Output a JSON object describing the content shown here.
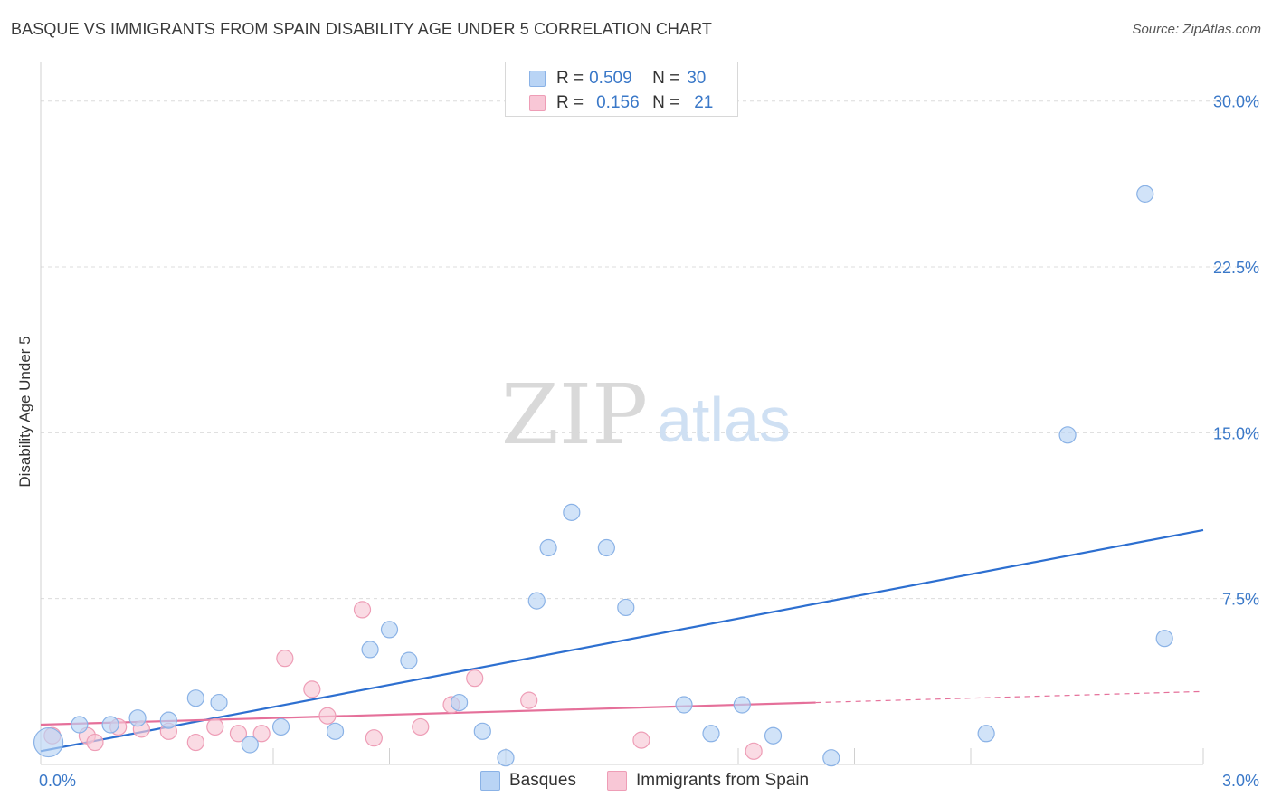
{
  "title": "BASQUE VS IMMIGRANTS FROM SPAIN DISABILITY AGE UNDER 5 CORRELATION CHART",
  "source": "Source: ZipAtlas.com",
  "watermark": {
    "zip": "ZIP",
    "atlas": "atlas"
  },
  "legend": {
    "r_label": "R =",
    "n_label": "N =",
    "rows": [
      {
        "r": "0.509",
        "n": "30"
      },
      {
        "r": "0.156",
        "n": "21"
      }
    ]
  },
  "colors": {
    "basques_fill": "#b9d4f5",
    "basques_stroke": "#8ab2e6",
    "basques_line": "#2d6fd0",
    "spain_fill": "#f8c7d6",
    "spain_stroke": "#ee9db6",
    "spain_line": "#e5709a",
    "tick_text": "#3a78c8",
    "grid": "#dcdcdc"
  },
  "chart_data": {
    "type": "scatter",
    "title": "BASQUE VS IMMIGRANTS FROM SPAIN DISABILITY AGE UNDER 5 CORRELATION CHART",
    "xlabel": "",
    "ylabel": "Disability Age Under 5",
    "xlim": [
      0,
      3.0
    ],
    "ylim": [
      0,
      30.0
    ],
    "x_tick_labels": [
      "0.0%",
      "3.0%"
    ],
    "y_ticks": [
      7.5,
      15.0,
      22.5,
      30.0
    ],
    "y_tick_labels": [
      "7.5%",
      "15.0%",
      "22.5%",
      "30.0%"
    ],
    "grid": true,
    "legend_position": "top-center",
    "series": [
      {
        "name": "Basques",
        "points": [
          [
            0.02,
            1.0
          ],
          [
            0.1,
            1.8
          ],
          [
            0.18,
            1.8
          ],
          [
            0.25,
            2.1
          ],
          [
            0.33,
            2.0
          ],
          [
            0.4,
            3.0
          ],
          [
            0.46,
            2.8
          ],
          [
            0.54,
            0.9
          ],
          [
            0.62,
            1.7
          ],
          [
            0.76,
            1.5
          ],
          [
            0.85,
            5.2
          ],
          [
            0.9,
            6.1
          ],
          [
            0.95,
            4.7
          ],
          [
            1.08,
            2.8
          ],
          [
            1.14,
            1.5
          ],
          [
            1.2,
            0.3
          ],
          [
            1.28,
            7.4
          ],
          [
            1.31,
            9.8
          ],
          [
            1.37,
            11.4
          ],
          [
            1.46,
            9.8
          ],
          [
            1.51,
            7.1
          ],
          [
            1.66,
            2.7
          ],
          [
            1.73,
            1.4
          ],
          [
            1.81,
            2.7
          ],
          [
            1.89,
            1.3
          ],
          [
            2.04,
            0.3
          ],
          [
            2.44,
            1.4
          ],
          [
            2.65,
            14.9
          ],
          [
            2.85,
            25.8
          ],
          [
            2.9,
            5.7
          ]
        ],
        "marker_sizes": [
          16,
          9,
          9,
          9,
          9,
          9,
          9,
          9,
          9,
          9,
          9,
          9,
          9,
          9,
          9,
          9,
          9,
          9,
          9,
          9,
          9,
          9,
          9,
          9,
          9,
          9,
          9,
          9,
          9,
          9
        ],
        "trend": {
          "x": [
            0.0,
            3.0
          ],
          "y": [
            0.6,
            10.6
          ]
        }
      },
      {
        "name": "Immigrants from Spain",
        "points": [
          [
            0.03,
            1.3
          ],
          [
            0.12,
            1.3
          ],
          [
            0.14,
            1.0
          ],
          [
            0.2,
            1.7
          ],
          [
            0.26,
            1.6
          ],
          [
            0.33,
            1.5
          ],
          [
            0.4,
            1.0
          ],
          [
            0.45,
            1.7
          ],
          [
            0.51,
            1.4
          ],
          [
            0.57,
            1.4
          ],
          [
            0.63,
            4.8
          ],
          [
            0.7,
            3.4
          ],
          [
            0.74,
            2.2
          ],
          [
            0.83,
            7.0
          ],
          [
            0.86,
            1.2
          ],
          [
            0.98,
            1.7
          ],
          [
            1.06,
            2.7
          ],
          [
            1.12,
            3.9
          ],
          [
            1.26,
            2.9
          ],
          [
            1.55,
            1.1
          ],
          [
            1.84,
            0.6
          ]
        ],
        "marker_sizes": [
          9,
          9,
          9,
          9,
          9,
          9,
          9,
          9,
          9,
          9,
          9,
          9,
          9,
          9,
          9,
          9,
          9,
          9,
          9,
          9,
          9
        ],
        "trend": {
          "x": [
            0.0,
            2.0
          ],
          "y": [
            1.8,
            2.8
          ]
        },
        "trend_extension": {
          "x": [
            2.0,
            3.0
          ],
          "y": [
            2.8,
            3.3
          ]
        }
      }
    ]
  }
}
